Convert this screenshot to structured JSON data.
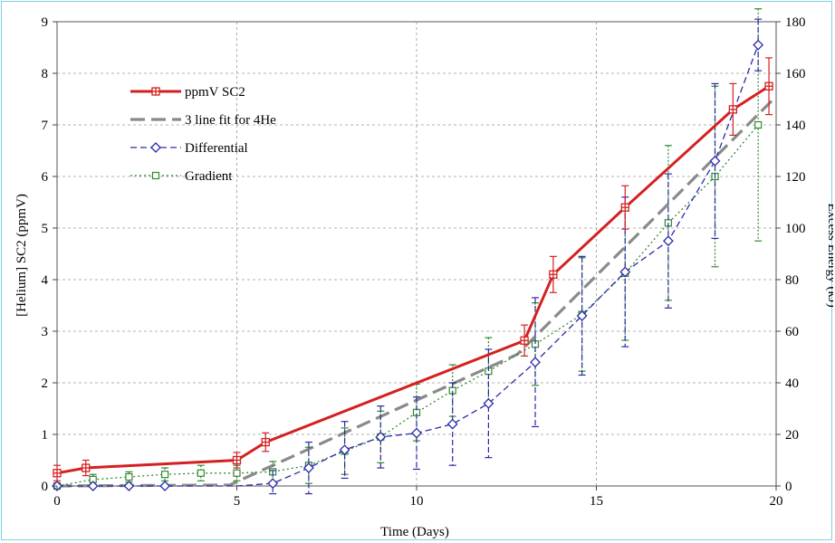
{
  "chart_data": {
    "type": "line",
    "title": "",
    "xlabel": "Time (Days)",
    "ylabel_left": "[Helium] SC2 (ppmV)",
    "ylabel_right": "Excess Energy (kJ)",
    "xlim": [
      0,
      20
    ],
    "ylim_left": [
      0,
      9
    ],
    "ylim_right": [
      0,
      180
    ],
    "x_ticks": [
      "0",
      "5",
      "10",
      "15",
      "20"
    ],
    "y_left_ticks": [
      "0",
      "1",
      "2",
      "3",
      "4",
      "5",
      "6",
      "7",
      "8",
      "9"
    ],
    "y_right_ticks": [
      "0",
      "20",
      "40",
      "60",
      "80",
      "100",
      "120",
      "140",
      "160",
      "180"
    ],
    "grid": true,
    "legend_position": "top-left",
    "series": [
      {
        "name": "ppmV SC2",
        "axis": "left",
        "color": "#d42020",
        "style": "solid",
        "marker": "square-plus",
        "x": [
          0,
          0.8,
          5,
          5.8,
          13,
          13.8,
          15.8,
          18.8,
          19.8
        ],
        "y": [
          0.25,
          0.35,
          0.5,
          0.85,
          2.82,
          4.1,
          5.4,
          7.3,
          7.75
        ],
        "error": [
          0.15,
          0.15,
          0.15,
          0.18,
          0.3,
          0.35,
          0.42,
          0.5,
          0.55
        ],
        "marker_idx": [
          0,
          1,
          2,
          3,
          4,
          5,
          6,
          7,
          8
        ]
      },
      {
        "name": "3 line fit for 4He",
        "axis": "left",
        "color": "#8a8a8a",
        "style": "longdash",
        "x": [
          0,
          4.8,
          12.8,
          20
        ],
        "y": [
          0,
          0.02,
          2.55,
          7.55
        ]
      },
      {
        "name": "Differential",
        "axis": "right",
        "color": "#2a2aa8",
        "style": "dash",
        "marker": "diamond",
        "x": [
          0,
          1,
          2,
          3,
          4,
          5,
          6,
          7,
          8,
          9,
          10,
          11,
          12,
          13.3,
          14.6,
          15.8,
          17,
          18.3,
          19.5
        ],
        "y": [
          0,
          0,
          0,
          0,
          0,
          0,
          1,
          7,
          14,
          19,
          20.5,
          24,
          32,
          48,
          66,
          83,
          95,
          126,
          171
        ],
        "error": [
          0,
          0,
          0,
          0,
          0,
          0,
          5,
          10,
          11,
          12,
          14,
          16,
          21,
          25,
          23,
          29,
          26,
          30,
          10
        ],
        "marker_idx": [
          0,
          1,
          2,
          3,
          6,
          7,
          8,
          9,
          10,
          11,
          12,
          13,
          14,
          15,
          16,
          17,
          18
        ]
      },
      {
        "name": "Gradient",
        "axis": "right",
        "color": "#2f8a2f",
        "style": "dot",
        "marker": "square",
        "x": [
          0,
          1,
          2,
          3,
          4,
          5,
          6,
          7,
          8,
          9,
          10,
          11,
          12,
          13.3,
          14.6,
          15.8,
          17,
          18.3,
          19.5
        ],
        "y": [
          0,
          2.5,
          3.5,
          4.5,
          5,
          5,
          5.5,
          8,
          13.5,
          19,
          28.5,
          37,
          44.5,
          55,
          66.5,
          82.5,
          102,
          120,
          140
        ],
        "error": [
          0,
          2,
          2,
          2.5,
          3,
          3,
          4,
          7,
          9,
          10,
          11,
          10,
          13,
          16,
          22,
          26,
          30,
          35,
          45
        ],
        "marker_idx": [
          0,
          1,
          2,
          3,
          4,
          5,
          6,
          7,
          8,
          9,
          10,
          11,
          12,
          13,
          14,
          15,
          16,
          17,
          18
        ]
      }
    ]
  }
}
